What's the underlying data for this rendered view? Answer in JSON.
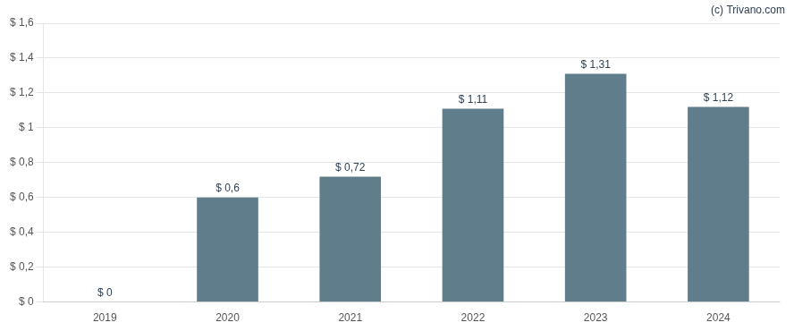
{
  "chart_data": {
    "type": "bar",
    "categories": [
      "2019",
      "2020",
      "2021",
      "2022",
      "2023",
      "2024"
    ],
    "values": [
      0.0,
      0.6,
      0.72,
      1.11,
      1.31,
      1.12
    ],
    "value_labels": [
      "$ 0",
      "$ 0,6",
      "$ 0,72",
      "$ 1,11",
      "$ 1,31",
      "$ 1,12"
    ],
    "data_labels": true,
    "color": "#607d8b",
    "ylim": [
      0,
      1.6
    ],
    "yticks": [
      {
        "value": 0.0,
        "label": "$ 0"
      },
      {
        "value": 0.2,
        "label": "$ 0,2"
      },
      {
        "value": 0.4,
        "label": "$ 0,4"
      },
      {
        "value": 0.6,
        "label": "$ 0,6"
      },
      {
        "value": 0.8,
        "label": "$ 0,8"
      },
      {
        "value": 1.0,
        "label": "$ 1"
      },
      {
        "value": 1.2,
        "label": "$ 1,2"
      },
      {
        "value": 1.4,
        "label": "$ 1,4"
      },
      {
        "value": 1.6,
        "label": "$ 1,6"
      }
    ],
    "grid": true,
    "annotations": [
      {
        "text": "(c) Trivano.com"
      }
    ]
  }
}
